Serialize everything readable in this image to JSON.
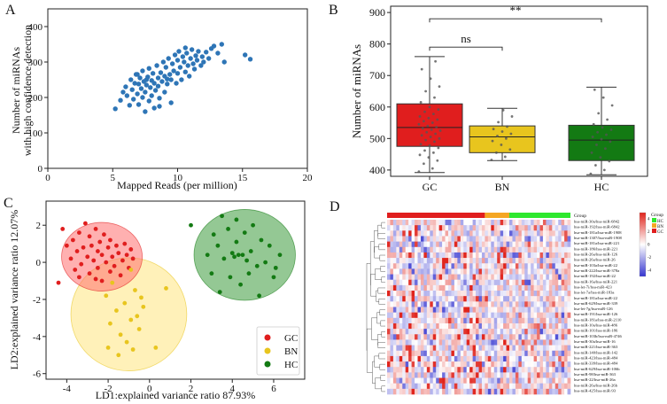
{
  "figure": {
    "panels": [
      "A",
      "B",
      "C",
      "D"
    ]
  },
  "chart_data": [
    {
      "panel": "A",
      "type": "scatter",
      "title": "",
      "xlabel": "Mapped Reads (per million)",
      "ylabel_lines": [
        "Number of miRNAs",
        "with high confidence detection"
      ],
      "xlim": [
        0,
        20
      ],
      "ylim": [
        0,
        450
      ],
      "xticks": [
        0,
        5,
        10,
        15,
        20
      ],
      "yticks": [
        0,
        100,
        200,
        300,
        400
      ],
      "color": "#2e75b6",
      "points": [
        [
          5.2,
          168
        ],
        [
          5.6,
          192
        ],
        [
          5.8,
          215
        ],
        [
          6.0,
          230
        ],
        [
          6.1,
          205
        ],
        [
          6.3,
          178
        ],
        [
          6.4,
          250
        ],
        [
          6.5,
          222
        ],
        [
          6.6,
          195
        ],
        [
          6.7,
          240
        ],
        [
          6.8,
          265
        ],
        [
          6.9,
          210
        ],
        [
          7.0,
          180
        ],
        [
          7.0,
          238
        ],
        [
          7.1,
          255
        ],
        [
          7.2,
          225
        ],
        [
          7.3,
          200
        ],
        [
          7.3,
          275
        ],
        [
          7.4,
          245
        ],
        [
          7.5,
          160
        ],
        [
          7.5,
          215
        ],
        [
          7.6,
          235
        ],
        [
          7.7,
          258
        ],
        [
          7.8,
          190
        ],
        [
          7.8,
          282
        ],
        [
          7.9,
          228
        ],
        [
          8.0,
          248
        ],
        [
          8.0,
          205
        ],
        [
          8.1,
          268
        ],
        [
          8.2,
          240
        ],
        [
          8.2,
          170
        ],
        [
          8.3,
          220
        ],
        [
          8.4,
          290
        ],
        [
          8.5,
          255
        ],
        [
          8.5,
          232
        ],
        [
          8.6,
          198
        ],
        [
          8.7,
          270
        ],
        [
          8.8,
          245
        ],
        [
          8.9,
          300
        ],
        [
          9.0,
          260
        ],
        [
          9.0,
          215
        ],
        [
          9.1,
          285
        ],
        [
          9.2,
          238
        ],
        [
          9.3,
          310
        ],
        [
          9.4,
          265
        ],
        [
          9.5,
          250
        ],
        [
          9.5,
          185
        ],
        [
          9.6,
          295
        ],
        [
          9.7,
          275
        ],
        [
          9.8,
          320
        ],
        [
          9.9,
          240
        ],
        [
          10.0,
          305
        ],
        [
          10.0,
          268
        ],
        [
          10.1,
          330
        ],
        [
          10.2,
          285
        ],
        [
          10.3,
          250
        ],
        [
          10.4,
          315
        ],
        [
          10.5,
          300
        ],
        [
          10.6,
          272
        ],
        [
          10.7,
          325
        ],
        [
          10.8,
          290
        ],
        [
          10.9,
          260
        ],
        [
          11.0,
          310
        ],
        [
          11.1,
          335
        ],
        [
          11.2,
          295
        ],
        [
          11.3,
          280
        ],
        [
          11.4,
          318
        ],
        [
          11.5,
          305
        ],
        [
          11.6,
          330
        ],
        [
          11.8,
          290
        ],
        [
          11.9,
          315
        ],
        [
          12.0,
          300
        ],
        [
          12.2,
          328
        ],
        [
          12.4,
          310
        ],
        [
          12.6,
          338
        ],
        [
          12.8,
          345
        ],
        [
          13.1,
          325
        ],
        [
          13.4,
          350
        ],
        [
          13.6,
          300
        ],
        [
          15.2,
          320
        ],
        [
          15.6,
          308
        ],
        [
          8.6,
          175
        ],
        [
          7.6,
          250
        ],
        [
          6.9,
          265
        ],
        [
          9.2,
          252
        ],
        [
          10.6,
          340
        ]
      ]
    },
    {
      "panel": "B",
      "type": "box",
      "title": "",
      "xlabel": "",
      "ylabel": "Number of miRNAs",
      "ylim": [
        380,
        920
      ],
      "yticks": [
        400,
        500,
        600,
        700,
        800,
        900
      ],
      "categories": [
        "GC",
        "BN",
        "HC"
      ],
      "boxes": [
        {
          "name": "GC",
          "color": "#e01e1e",
          "whisker_low": 392,
          "q1": 475,
          "median": 535,
          "q3": 610,
          "whisker_high": 760
        },
        {
          "name": "BN",
          "color": "#e8c51e",
          "whisker_low": 430,
          "q1": 455,
          "median": 505,
          "q3": 540,
          "whisker_high": 596
        },
        {
          "name": "HC",
          "color": "#137a13",
          "whisker_low": 385,
          "q1": 430,
          "median": 495,
          "q3": 542,
          "whisker_high": 663
        }
      ],
      "jitter": {
        "GC": [
          395,
          405,
          420,
          430,
          440,
          448,
          455,
          462,
          470,
          478,
          482,
          490,
          495,
          500,
          505,
          510,
          515,
          520,
          525,
          528,
          532,
          536,
          540,
          545,
          550,
          555,
          560,
          565,
          570,
          578,
          585,
          592,
          600,
          615,
          630,
          650,
          665,
          690,
          720,
          745
        ],
        "BN": [
          432,
          442,
          455,
          465,
          480,
          492,
          500,
          508,
          515,
          522,
          530,
          538,
          552,
          570,
          590
        ],
        "HC": [
          388,
          400,
          415,
          428,
          440,
          455,
          468,
          480,
          490,
          498,
          505,
          512,
          520,
          528,
          535,
          545,
          560,
          580,
          605,
          630,
          655
        ]
      },
      "significance": [
        {
          "from": "GC",
          "to": "BN",
          "label": "ns",
          "y": 790
        },
        {
          "from": "GC",
          "to": "HC",
          "label": "**",
          "y": 880
        }
      ]
    },
    {
      "panel": "C",
      "type": "scatter",
      "title": "",
      "xlabel": "LD1:explained variance ratio 87.93%",
      "ylabel": "LD2:explained variance ratio 12.07%",
      "xlim": [
        -5,
        7.5
      ],
      "ylim": [
        -6.3,
        3.3
      ],
      "xticks": [
        -4,
        -2,
        0,
        2,
        4,
        6
      ],
      "yticks": [
        -6,
        -4,
        -2,
        0,
        2
      ],
      "legend_position": "bottom-right",
      "series": [
        {
          "name": "GC",
          "color": "#e01e1e",
          "ellipse": {
            "cx": -2.3,
            "cy": 0.3,
            "rx": 1.95,
            "ry": 1.85,
            "fill": "#ff6f6f"
          },
          "points": [
            [
              -4.4,
              -1.1
            ],
            [
              -4.2,
              1.8
            ],
            [
              -4.0,
              0.9
            ],
            [
              -3.8,
              0.2
            ],
            [
              -3.7,
              1.2
            ],
            [
              -3.6,
              -0.4
            ],
            [
              -3.5,
              0.6
            ],
            [
              -3.4,
              1.6
            ],
            [
              -3.3,
              -0.1
            ],
            [
              -3.2,
              0.8
            ],
            [
              -3.1,
              2.1
            ],
            [
              -3.0,
              0.3
            ],
            [
              -2.9,
              -0.6
            ],
            [
              -2.9,
              1.4
            ],
            [
              -2.8,
              0.9
            ],
            [
              -2.7,
              0.1
            ],
            [
              -2.6,
              1.8
            ],
            [
              -2.5,
              -0.3
            ],
            [
              -2.5,
              0.6
            ],
            [
              -2.4,
              1.1
            ],
            [
              -2.3,
              -1.0
            ],
            [
              -2.3,
              0.4
            ],
            [
              -2.2,
              1.5
            ],
            [
              -2.1,
              0.0
            ],
            [
              -2.0,
              0.8
            ],
            [
              -1.9,
              -0.5
            ],
            [
              -1.9,
              1.2
            ],
            [
              -1.8,
              0.3
            ],
            [
              -1.7,
              -0.2
            ],
            [
              -1.6,
              0.9
            ],
            [
              -1.5,
              0.5
            ],
            [
              -1.4,
              -0.7
            ],
            [
              -1.3,
              0.1
            ],
            [
              -1.2,
              1.0
            ],
            [
              -1.1,
              0.4
            ],
            [
              -1.0,
              -0.3
            ],
            [
              -0.9,
              0.7
            ],
            [
              -0.8,
              0.2
            ],
            [
              -2.6,
              -0.9
            ],
            [
              -3.4,
              -0.8
            ]
          ]
        },
        {
          "name": "BN",
          "color": "#e8c51e",
          "ellipse": {
            "cx": -1.0,
            "cy": -2.8,
            "rx": 2.8,
            "ry": 3.05,
            "fill": "#ffe680"
          },
          "points": [
            [
              -2.1,
              -1.8
            ],
            [
              -2.0,
              -4.6
            ],
            [
              -1.9,
              -3.3
            ],
            [
              -1.6,
              -2.6
            ],
            [
              -1.5,
              -5.0
            ],
            [
              -1.4,
              -3.9
            ],
            [
              -1.2,
              -2.2
            ],
            [
              -1.1,
              -4.3
            ],
            [
              -0.9,
              -3.1
            ],
            [
              -0.8,
              -4.7
            ],
            [
              -0.7,
              -1.5
            ],
            [
              -0.6,
              -2.9
            ],
            [
              -0.5,
              -3.6
            ],
            [
              -0.4,
              -1.9
            ],
            [
              -0.3,
              -2.4
            ],
            [
              0.3,
              -4.6
            ],
            [
              0.8,
              -1.4
            ],
            [
              -1.8,
              -1.1
            ],
            [
              -0.9,
              -0.4
            ]
          ]
        },
        {
          "name": "HC",
          "color": "#137a13",
          "ellipse": {
            "cx": 4.6,
            "cy": 0.4,
            "rx": 2.45,
            "ry": 2.45,
            "fill": "#3c9a3c"
          },
          "points": [
            [
              2.0,
              2.0
            ],
            [
              2.8,
              0.4
            ],
            [
              3.0,
              -0.6
            ],
            [
              3.1,
              1.5
            ],
            [
              3.3,
              0.9
            ],
            [
              3.4,
              -1.6
            ],
            [
              3.5,
              2.5
            ],
            [
              3.6,
              0.2
            ],
            [
              3.8,
              1.8
            ],
            [
              3.9,
              -0.8
            ],
            [
              4.0,
              0.5
            ],
            [
              4.1,
              0.3
            ],
            [
              4.2,
              2.3
            ],
            [
              4.3,
              0.4
            ],
            [
              4.4,
              -1.2
            ],
            [
              4.5,
              0.4
            ],
            [
              4.6,
              1.6
            ],
            [
              4.7,
              0.1
            ],
            [
              4.8,
              -0.6
            ],
            [
              4.9,
              0.6
            ],
            [
              5.0,
              2.0
            ],
            [
              5.2,
              -0.2
            ],
            [
              5.4,
              1.2
            ],
            [
              5.6,
              0.0
            ],
            [
              5.8,
              0.9
            ],
            [
              6.0,
              -0.8
            ],
            [
              6.1,
              -0.3
            ],
            [
              6.3,
              0.4
            ],
            [
              5.3,
              -1.8
            ],
            [
              4.2,
              1.1
            ]
          ]
        }
      ]
    },
    {
      "panel": "D",
      "type": "heatmap",
      "title": "",
      "group_legend_title": "Group",
      "groups": [
        {
          "name": "GC",
          "color": "#e01e1e",
          "count": 32
        },
        {
          "name": "BN",
          "color": "#f5a623",
          "count": 8
        },
        {
          "name": "HC",
          "color": "#2ee82e",
          "count": 20
        }
      ],
      "colorbar": {
        "ticks": [
          4,
          2,
          0,
          -2,
          -4
        ],
        "high": "#e0241c",
        "mid": "#ffffff",
        "low": "#3636d0"
      },
      "row_labels": [
        "hsa-miR-30a/hsa-miR-6842",
        "hsa-miR-192/hsa-miR-6842",
        "hsa-miR-181a/hsa-miR-1908",
        "hsa-miR-1307/hsa-miR-1908",
        "hsa-miR-181a/hsa-miR-221",
        "hsa-miR-186/hsa-miR-221",
        "hsa-miR-26a/hsa-miR-126",
        "hsa-miR-26a/hsa-miR-26",
        "hsa-miR-103a/hsa-miR-22",
        "hsa-miR-222/hsa-miR-378a",
        "hsa-miR-192/hsa-miR-22",
        "hsa-miR-16a/hsa-miR-221",
        "hsa-let-7i/hsa-miR-423",
        "hsa-let-7a/hsa-miR-183a",
        "hsa-miR-181a/hsa-miR-22",
        "hsa-miR-629/hsa-miR-339",
        "hsa-let-7g/hsa-miR-126",
        "hsa-miR-191/hsa-miR-126",
        "hsa-miR-181a/hsa-miR-2110",
        "hsa-miR-10a/hsa-miR-486",
        "hsa-miR-101/hsa-miR-186",
        "hsa-miR-103b/hsa-miR-4746",
        "hsa-miR-30a/hsa-miR-16",
        "hsa-miR-221/hsa-miR-363",
        "hsa-miR-140/hsa-miR-142",
        "hsa-miR-423/hsa-miR-484",
        "hsa-miR-339/hsa-miR-484",
        "hsa-miR-629/hsa-miR-106b",
        "hsa-miR-98/hsa-miR-363",
        "hsa-miR-22/hsa-miR-26a",
        "hsa-miR-26a/hsa-miR-26b",
        "hsa-miR-425/hsa-miR-93"
      ]
    }
  ]
}
